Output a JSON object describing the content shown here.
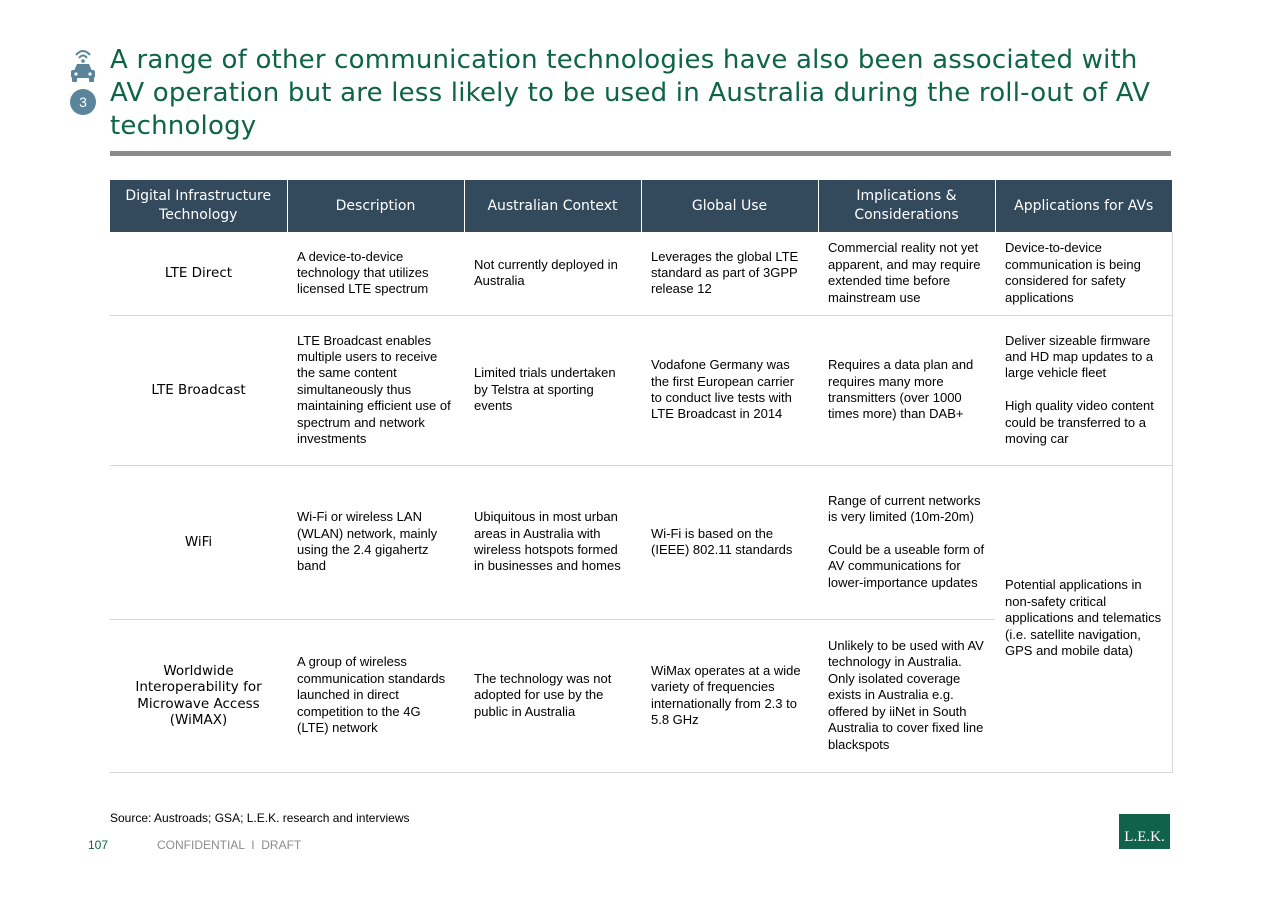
{
  "badge": {
    "number": "3",
    "icon": "connected-car-icon"
  },
  "title": "A range of other communication technologies have also been associated with AV operation but are less likely to be used in Australia during the roll-out of AV technology",
  "table": {
    "headers": [
      "Digital Infrastructure Technology",
      "Description",
      "Australian Context",
      "Global Use",
      "Implications & Considerations",
      "Applications for AVs"
    ],
    "rows": [
      {
        "technology": "LTE Direct",
        "description": "A device-to-device technology that utilizes licensed LTE spectrum",
        "australian_context": "Not currently deployed in Australia",
        "global_use": "Leverages the global LTE standard as part of 3GPP release 12",
        "implications": "Commercial reality not yet apparent, and may require extended time before mainstream use",
        "applications": "Device-to-device communication is being considered for safety applications"
      },
      {
        "technology": "LTE Broadcast",
        "description": "LTE Broadcast enables multiple users to receive the same content simultaneously thus maintaining efficient use of spectrum and network investments",
        "australian_context": "Limited trials undertaken by Telstra at sporting events",
        "global_use": "Vodafone Germany was the first European carrier to conduct live tests with LTE Broadcast in 2014",
        "implications": "Requires a data plan and requires many more transmitters (over 1000 times more) than DAB+",
        "applications": "Deliver sizeable firmware and HD map updates to a large vehicle fleet\n\nHigh quality video content could be transferred to a moving car"
      },
      {
        "technology": "WiFi",
        "description": "Wi-Fi or wireless LAN (WLAN) network, mainly using the 2.4 gigahertz band",
        "australian_context": "Ubiquitous in most urban areas in Australia with wireless hotspots formed in businesses and homes",
        "global_use": "Wi-Fi is based on the (IEEE) 802.11 standards",
        "implications": "Range of current networks is very limited (10m-20m)\n\nCould be a useable form of AV communications for lower-importance updates",
        "applications": "Potential applications in non-safety critical applications and telematics (i.e. satellite navigation, GPS and mobile data)"
      },
      {
        "technology": "Worldwide Interoperability for Microwave Access (WiMAX)",
        "description": "A group of wireless communication standards launched in direct competition to the 4G (LTE) network",
        "australian_context": "The technology was not adopted for use by the public in Australia",
        "global_use": "WiMax operates at a wide variety of frequencies internationally from 2.3 to 5.8 GHz",
        "implications": "Unlikely to be used with AV technology in Australia. Only isolated coverage exists in Australia e.g. offered by iiNet in South Australia to cover fixed line blackspots"
      }
    ]
  },
  "footer": {
    "source": "Source: Austroads; GSA; L.E.K. research and interviews",
    "page_number": "107",
    "confidential": "CONFIDENTIAL  I  DRAFT",
    "logo_text": "L.E.K."
  },
  "colors": {
    "title_green": "#0e6446",
    "header_navy": "#33495c",
    "badge_blue": "#5a8499",
    "rule_gray": "#8a8a8a",
    "logo_green": "#10624a"
  }
}
